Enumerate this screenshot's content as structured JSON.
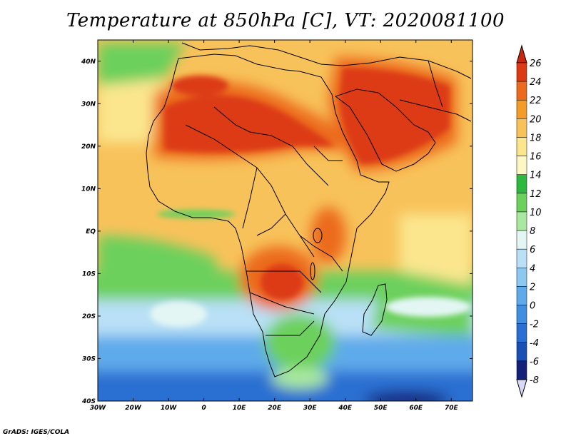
{
  "title": "Temperature at 850hPa [C], VT: 2020081100",
  "credit": "GrADS: IGES/COLA",
  "map": {
    "lon_range": [
      -30,
      76
    ],
    "lat_range": [
      -40,
      45
    ],
    "lon_ticks": [
      {
        "value": -30,
        "label": "30W"
      },
      {
        "value": -20,
        "label": "20W"
      },
      {
        "value": -10,
        "label": "10W"
      },
      {
        "value": 0,
        "label": "0"
      },
      {
        "value": 10,
        "label": "10E"
      },
      {
        "value": 20,
        "label": "20E"
      },
      {
        "value": 30,
        "label": "30E"
      },
      {
        "value": 40,
        "label": "40E"
      },
      {
        "value": 50,
        "label": "50E"
      },
      {
        "value": 60,
        "label": "60E"
      },
      {
        "value": 70,
        "label": "70E"
      }
    ],
    "lat_ticks": [
      {
        "value": 40,
        "label": "40N"
      },
      {
        "value": 30,
        "label": "30N"
      },
      {
        "value": 20,
        "label": "20N"
      },
      {
        "value": 10,
        "label": "10N"
      },
      {
        "value": 0,
        "label": "EQ"
      },
      {
        "value": -10,
        "label": "10S"
      },
      {
        "value": -20,
        "label": "20S"
      },
      {
        "value": -30,
        "label": "30S"
      },
      {
        "value": -40,
        "label": "40S"
      }
    ]
  },
  "colorbar": {
    "levels": [
      {
        "label": "26",
        "color": "#c8280f"
      },
      {
        "label": "24",
        "color": "#dc3a14"
      },
      {
        "label": "22",
        "color": "#ec6a1e"
      },
      {
        "label": "20",
        "color": "#f49c2a"
      },
      {
        "label": "18",
        "color": "#f8c25a"
      },
      {
        "label": "16",
        "color": "#fbe68e"
      },
      {
        "label": "14",
        "color": "#fdf7c4"
      },
      {
        "label": "12",
        "color": "#2fb83f"
      },
      {
        "label": "10",
        "color": "#6cd05c"
      },
      {
        "label": "8",
        "color": "#a9e8a0"
      },
      {
        "label": "6",
        "color": "#e3f6f4"
      },
      {
        "label": "4",
        "color": "#b9e0f6"
      },
      {
        "label": "2",
        "color": "#8cc8f0"
      },
      {
        "label": "0",
        "color": "#5eaaea"
      },
      {
        "label": "-2",
        "color": "#3f8ee0"
      },
      {
        "label": "-4",
        "color": "#2a6fd2"
      },
      {
        "label": "-6",
        "color": "#1a4fb4"
      },
      {
        "label": "-8",
        "color": "#14217a"
      }
    ],
    "top_cap_color": "#c8280f",
    "bottom_cap_color": "#d8d8f8"
  }
}
